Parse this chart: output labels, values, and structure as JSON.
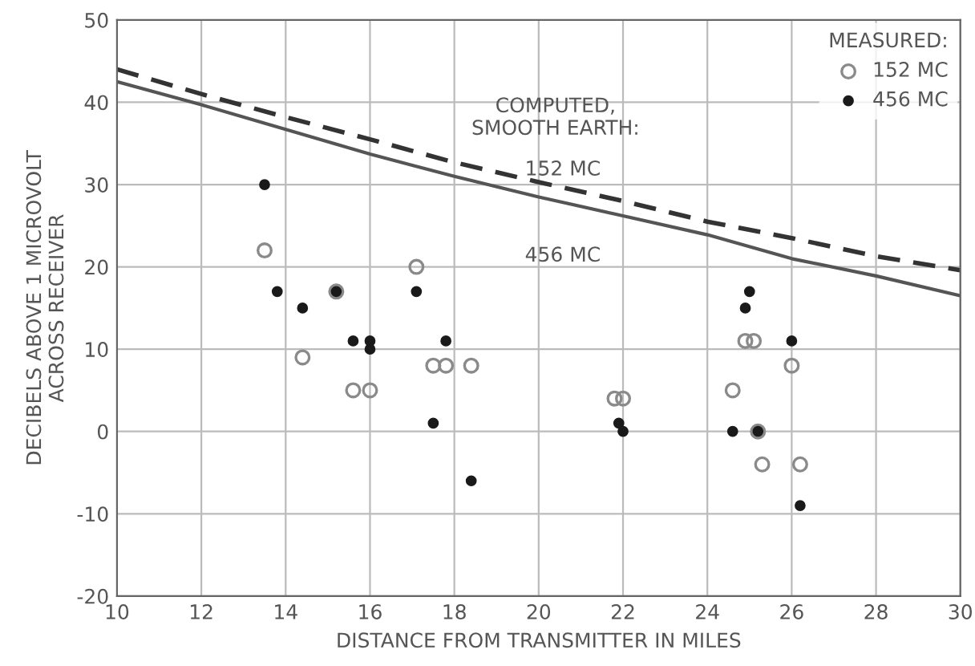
{
  "chart_data": {
    "type": "scatter",
    "xlabel": "DISTANCE FROM TRANSMITTER IN MILES",
    "ylabel": "DECIBELS ABOVE 1 MICROVOLT\nACROSS RECEIVER",
    "legend_title": "MEASURED:",
    "legend": "top right",
    "grid": true,
    "xlim": [
      10,
      30
    ],
    "xticks": [
      10,
      12,
      14,
      16,
      18,
      20,
      22,
      24,
      26,
      28,
      30
    ],
    "ylim": [
      -20,
      50
    ],
    "yticks": [
      -20,
      -10,
      0,
      10,
      20,
      30,
      40,
      50
    ],
    "annotations": [
      "COMPUTED,\nSMOOTH EARTH:"
    ],
    "series": [
      {
        "name": "152 MC",
        "type": "line",
        "line_style": "dashed",
        "color": "#333333",
        "x": [
          10,
          12,
          14,
          16,
          18,
          20,
          22,
          24,
          26,
          28,
          30
        ],
        "values": [
          44,
          41,
          38.2,
          35.5,
          32.7,
          30.3,
          28,
          25.5,
          23.5,
          21.3,
          19.6
        ]
      },
      {
        "name": "456 MC",
        "type": "line",
        "line_style": "solid",
        "color": "#555555",
        "x": [
          10,
          12,
          14,
          16,
          18,
          20,
          22,
          24,
          26,
          28,
          30
        ],
        "values": [
          42.5,
          39.7,
          36.7,
          33.7,
          31,
          28.5,
          26.2,
          23.9,
          21,
          18.9,
          16.5
        ]
      },
      {
        "name": "152 MC",
        "marker": "circle",
        "color": "#8a8a8a",
        "x": [
          13.5,
          14.4,
          15.2,
          15.6,
          16,
          17.1,
          17.5,
          17.8,
          18.4,
          21.8,
          22,
          24.6,
          24.9,
          25.1,
          25.2,
          25.3,
          26,
          26.2
        ],
        "values": [
          22,
          9,
          17,
          5,
          5,
          20,
          8,
          8,
          8,
          4,
          4,
          5,
          11,
          11,
          0,
          -4,
          8,
          -4
        ]
      },
      {
        "name": "456 MC",
        "marker": "circle",
        "color": "#1a1a1a",
        "x": [
          13.5,
          13.8,
          14.4,
          15.2,
          15.6,
          16,
          16,
          17.1,
          17.5,
          17.8,
          18.4,
          21.9,
          22,
          24.6,
          24.9,
          25,
          25.2,
          26,
          26.2
        ],
        "values": [
          30,
          17,
          15,
          17,
          11,
          11,
          10,
          17,
          1,
          11,
          -6,
          1,
          0,
          0,
          15,
          17,
          0,
          11,
          -9
        ]
      }
    ]
  }
}
